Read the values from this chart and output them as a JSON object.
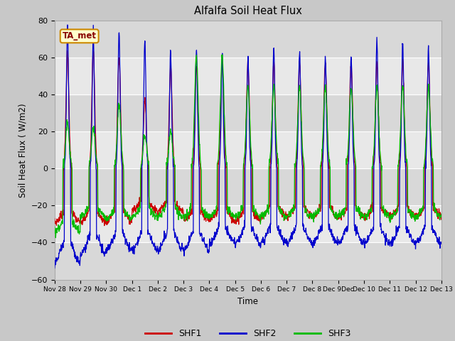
{
  "title": "Alfalfa Soil Heat Flux",
  "ylabel": "Soil Heat Flux ( W/m2)",
  "xlabel": "Time",
  "ylim": [
    -60,
    80
  ],
  "yticks": [
    -60,
    -40,
    -20,
    0,
    20,
    40,
    60,
    80
  ],
  "fig_bg_color": "#c8c8c8",
  "plot_bg_color": "#e0e0e0",
  "grid_color": "white",
  "shf1_color": "#cc0000",
  "shf2_color": "#0000cc",
  "shf3_color": "#00bb00",
  "annotation_text": "TA_met",
  "annotation_bg": "#ffffcc",
  "annotation_border": "#cc8800",
  "legend_labels": [
    "SHF1",
    "SHF2",
    "SHF3"
  ],
  "n_days": 15,
  "pts_per_day": 96,
  "day_scales_shf1": [
    62,
    65,
    60,
    38,
    55,
    55,
    57,
    57,
    57,
    57,
    57,
    57,
    57,
    57,
    57
  ],
  "day_scales_shf2": [
    78,
    73,
    74,
    70,
    63,
    64,
    60,
    60,
    65,
    64,
    60,
    60,
    69,
    68,
    66
  ],
  "day_scales_shf3": [
    25,
    22,
    35,
    18,
    20,
    60,
    60,
    44,
    44,
    44,
    44,
    44,
    44,
    44,
    44
  ],
  "night_scales_shf1": [
    28,
    28,
    27,
    22,
    22,
    27,
    27,
    27,
    25,
    25,
    25,
    25,
    25,
    25,
    25
  ],
  "night_scales_shf2": [
    44,
    40,
    38,
    38,
    38,
    38,
    35,
    35,
    35,
    35,
    35,
    35,
    35,
    35,
    35
  ],
  "night_scales_shf3": [
    37,
    28,
    30,
    28,
    28,
    28,
    28,
    28,
    28,
    28,
    28,
    28,
    28,
    28,
    28
  ],
  "tick_labels": [
    "Nov 28",
    "Nov 29",
    "Nov 30",
    "Dec 1",
    "Dec 2",
    "Dec 3",
    "Dec 4",
    "Dec 5",
    "Dec 6",
    "Dec 7",
    "Dec 8",
    "Dec 9Dec",
    "Dec 10",
    "Dec 11",
    "Dec 12",
    "Dec 13"
  ]
}
